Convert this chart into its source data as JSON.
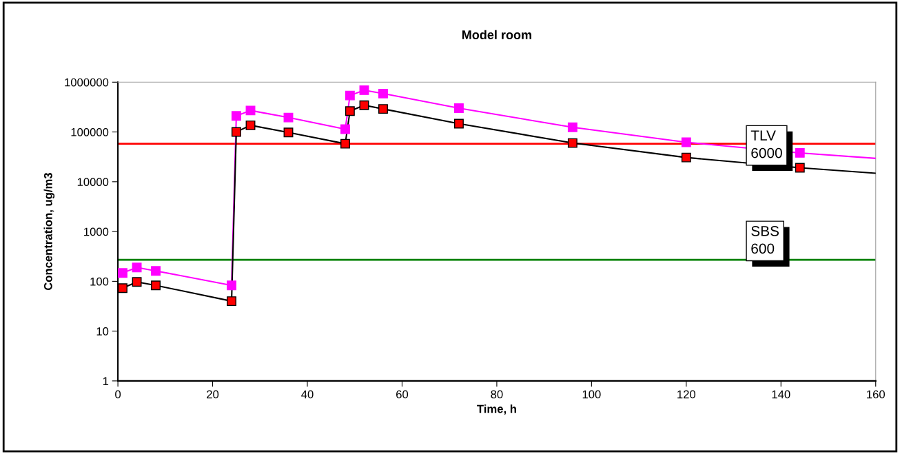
{
  "chart_data": {
    "type": "line",
    "title": "Model room",
    "xlabel": "Time, h",
    "ylabel": "Concentration, ug/m3",
    "log": "y",
    "grid": false,
    "legend": false,
    "marker": "square",
    "line_style": "solid",
    "xlim": [
      0,
      160
    ],
    "xticks": [
      0,
      20,
      40,
      60,
      80,
      100,
      120,
      140,
      160
    ],
    "ylim": [
      1,
      1000000
    ],
    "yticks": [
      1,
      10,
      100,
      1000,
      10000,
      100000,
      1000000
    ],
    "x": [
      1,
      4,
      8,
      24,
      25,
      28,
      36,
      48,
      49,
      52,
      56,
      72,
      96,
      120,
      144,
      160
    ],
    "series": [
      {
        "color": "#ff00ff",
        "colors": [
          "#ff00ff",
          "#ff00ff",
          "#ff00ff",
          "#ff00ff",
          "#ff00ff",
          "#ff00ff",
          "#ff00ff",
          "#ff00ff",
          "#ff00ff",
          "#ff00ff",
          "#ff00ff",
          "#ff00ff",
          "#ff00ff",
          "#ff00ff",
          "#ff00ff",
          null
        ],
        "values": [
          147,
          190,
          162,
          83,
          210000,
          270000,
          195000,
          114000,
          540000,
          690000,
          590000,
          300000,
          124000,
          62000,
          38000,
          29500
        ]
      },
      {
        "color": "#000000",
        "colors": [
          "#ff0000",
          "#ff0000",
          "#ff0000",
          "#ff0000",
          "#ff0000",
          "#ff0000",
          "#ff0000",
          "#ff0000",
          "#ff0000",
          "#ff0000",
          "#ff0000",
          "#ff0000",
          "#ff0000",
          "#ff0000",
          "#ff0000",
          null
        ],
        "values": [
          73,
          97,
          83,
          40,
          100000,
          136000,
          98000,
          58000,
          263000,
          345000,
          290000,
          147000,
          60000,
          30700,
          19100,
          14800
        ]
      }
    ],
    "ref_lines": [
      {
        "axis": "y",
        "value": 58000,
        "label": "TLV\n6000",
        "color": "#ff0000"
      },
      {
        "axis": "y",
        "value": 270,
        "label": "SBS\n600",
        "color": "#008000"
      }
    ]
  }
}
